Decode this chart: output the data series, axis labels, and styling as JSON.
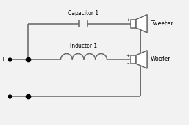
{
  "bg_color": "#f2f2f2",
  "line_color": "#666666",
  "capacitor_label": "Capacitor 1",
  "inductor_label": "Inductor 1",
  "tweeter_label": "Tweeter",
  "woofer_label": "Woofer",
  "plus_input": "+",
  "minus_sign": "–"
}
